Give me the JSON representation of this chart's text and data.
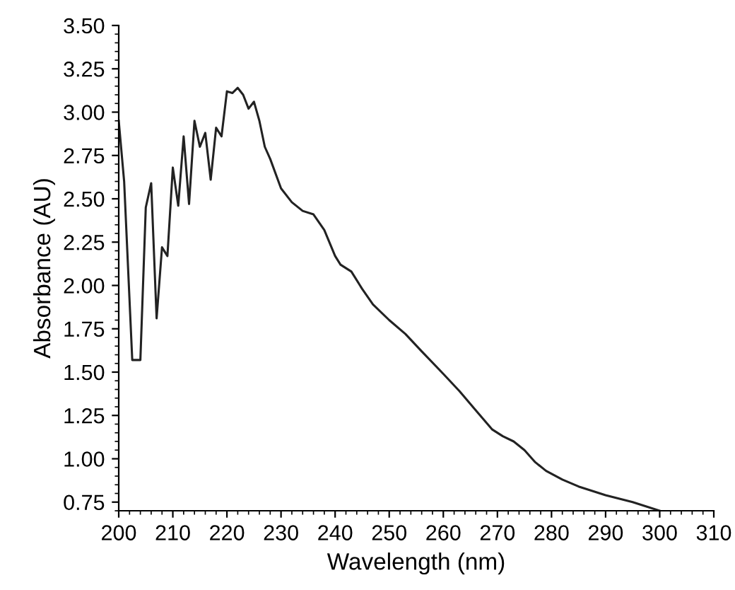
{
  "chart_data": {
    "type": "line",
    "xlabel": "Wavelength (nm)",
    "ylabel": "Absorbance (AU)",
    "x": [
      200,
      201,
      202.5,
      204,
      205,
      206,
      207,
      208,
      209,
      210,
      211,
      212,
      213,
      214,
      215,
      216,
      217,
      218,
      219,
      220,
      221,
      222,
      223,
      224,
      225,
      226,
      227,
      228,
      230,
      232,
      234,
      236,
      238,
      240,
      241,
      243,
      245,
      247,
      250,
      253,
      256,
      260,
      263,
      266,
      269,
      271,
      273,
      275,
      277,
      279,
      282,
      285,
      290,
      295,
      300
    ],
    "series": [
      {
        "color": "#222222",
        "values": [
          2.95,
          2.6,
          1.57,
          1.57,
          2.45,
          2.59,
          1.81,
          2.22,
          2.17,
          2.68,
          2.46,
          2.86,
          2.47,
          2.95,
          2.8,
          2.88,
          2.61,
          2.91,
          2.86,
          3.12,
          3.11,
          3.14,
          3.1,
          3.02,
          3.06,
          2.95,
          2.8,
          2.73,
          2.56,
          2.48,
          2.43,
          2.41,
          2.32,
          2.17,
          2.12,
          2.08,
          1.98,
          1.89,
          1.8,
          1.72,
          1.62,
          1.49,
          1.39,
          1.28,
          1.17,
          1.13,
          1.1,
          1.05,
          0.98,
          0.93,
          0.88,
          0.84,
          0.79,
          0.75,
          0.7
        ]
      }
    ],
    "xlim": [
      200,
      310
    ],
    "xticks": [
      200,
      210,
      220,
      230,
      240,
      250,
      260,
      270,
      280,
      290,
      300,
      310
    ],
    "ylim": [
      0.7,
      3.5
    ],
    "yticks": [
      {
        "value": 0.75,
        "label": "0.75"
      },
      {
        "value": 1.0,
        "label": "1.00"
      },
      {
        "value": 1.25,
        "label": "1.25"
      },
      {
        "value": 1.5,
        "label": "1.50"
      },
      {
        "value": 1.75,
        "label": "1.75"
      },
      {
        "value": 2.0,
        "label": "2.00"
      },
      {
        "value": 2.25,
        "label": "2.25"
      },
      {
        "value": 2.5,
        "label": "2.50"
      },
      {
        "value": 2.75,
        "label": "2.75"
      },
      {
        "value": 3.0,
        "label": "3.00"
      },
      {
        "value": 3.25,
        "label": "3.25"
      },
      {
        "value": 3.5,
        "label": "3.50"
      }
    ],
    "grid": false,
    "legend": false,
    "marker": "none",
    "line_style": "solid"
  }
}
